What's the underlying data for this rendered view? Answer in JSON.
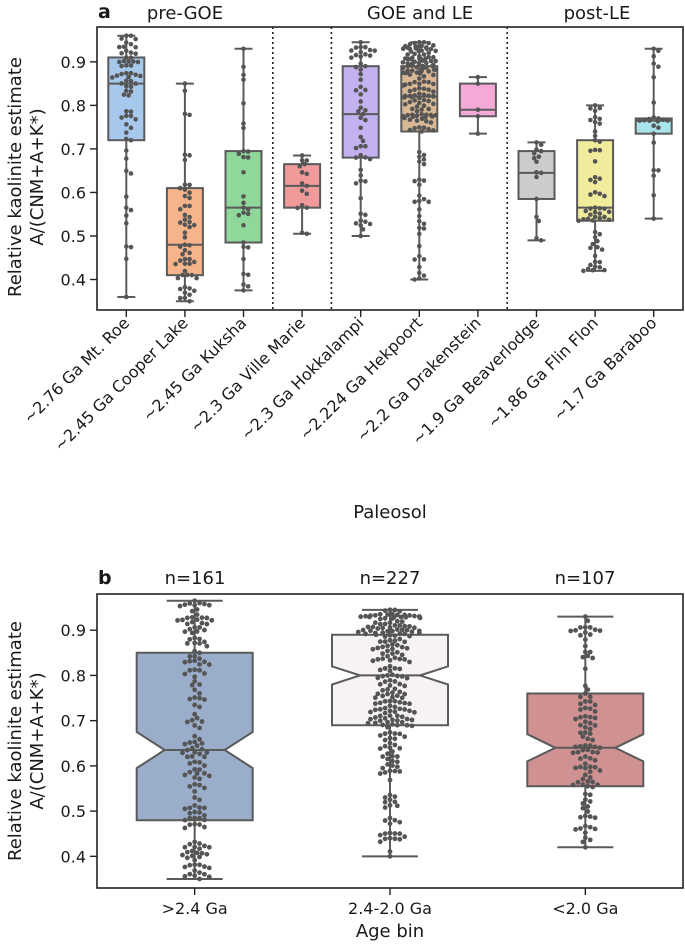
{
  "chart_data": [
    {
      "type": "box",
      "panel_label": "a",
      "ylabel_line1": "Relative kaolinite estimate",
      "ylabel_line2": "A/(CNM+A+K*)",
      "xlabel": "Paleosol",
      "ylim": [
        0.33,
        0.98
      ],
      "yticks": [
        0.4,
        0.5,
        0.6,
        0.7,
        0.8,
        0.9
      ],
      "group_labels": [
        "pre-GOE",
        "GOE and LE",
        "post-LE"
      ],
      "categories": [
        "~2.76 Ga Mt. Roe",
        "~2.45 Ga Cooper Lake",
        "~2.45 Ga Kuksha",
        "~2.3 Ga Ville Marie",
        "~2.3 Ga Hokkalampi",
        "~2.224 Ga Hekpoort",
        "~2.2 Ga Drakenstein",
        "~1.9 Ga Beaverlodge",
        "~1.86 Ga Flin Flon",
        "~1.7 Ga Baraboo"
      ],
      "boxes": [
        {
          "name": "~2.76 Ga Mt. Roe",
          "min": 0.36,
          "q1": 0.72,
          "median": 0.85,
          "q3": 0.91,
          "max": 0.96,
          "n": 65,
          "color": "#a6c8ec"
        },
        {
          "name": "~2.45 Ga Cooper Lake",
          "min": 0.35,
          "q1": 0.41,
          "median": 0.48,
          "q3": 0.61,
          "max": 0.85,
          "n": 55,
          "color": "#f5b489"
        },
        {
          "name": "~2.45 Ga Kuksha",
          "min": 0.375,
          "q1": 0.485,
          "median": 0.565,
          "q3": 0.695,
          "max": 0.93,
          "n": 30,
          "color": "#90d89a"
        },
        {
          "name": "~2.3 Ga Ville Marie",
          "min": 0.505,
          "q1": 0.565,
          "median": 0.615,
          "q3": 0.665,
          "max": 0.685,
          "n": 16,
          "color": "#f09a9a"
        },
        {
          "name": "~2.3 Ga Hokkalampi",
          "min": 0.5,
          "q1": 0.68,
          "median": 0.78,
          "q3": 0.89,
          "max": 0.945,
          "n": 55,
          "color": "#c4b1ef"
        },
        {
          "name": "~2.224 Ga Hekpoort",
          "min": 0.4,
          "q1": 0.74,
          "median": 0.82,
          "q3": 0.89,
          "max": 0.945,
          "n": 165,
          "color": "#d9b896"
        },
        {
          "name": "~2.2 Ga Drakenstein",
          "min": 0.735,
          "q1": 0.775,
          "median": 0.79,
          "q3": 0.85,
          "max": 0.865,
          "n": 5,
          "color": "#f4a9d8"
        },
        {
          "name": "~1.9 Ga Beaverlodge",
          "min": 0.49,
          "q1": 0.585,
          "median": 0.645,
          "q3": 0.695,
          "max": 0.715,
          "n": 16,
          "color": "#cccccc"
        },
        {
          "name": "~1.86 Ga Flin Flon",
          "min": 0.42,
          "q1": 0.535,
          "median": 0.565,
          "q3": 0.72,
          "max": 0.8,
          "n": 60,
          "color": "#f1ec9c"
        },
        {
          "name": "~1.7 Ga Baraboo",
          "min": 0.54,
          "q1": 0.735,
          "median": 0.765,
          "q3": 0.77,
          "max": 0.93,
          "n": 25,
          "color": "#a9e4ea"
        }
      ],
      "group_dividers_after_index": [
        2,
        3,
        6
      ]
    },
    {
      "type": "box",
      "notched": true,
      "panel_label": "b",
      "ylabel_line1": "Relative kaolinite estimate",
      "ylabel_line2": "A/(CNM+A+K*)",
      "xlabel": "Age bin",
      "ylim": [
        0.33,
        0.98
      ],
      "yticks": [
        0.4,
        0.5,
        0.6,
        0.7,
        0.8,
        0.9
      ],
      "categories": [
        ">2.4 Ga",
        "2.4-2.0 Ga",
        "<2.0 Ga"
      ],
      "counts": [
        "n=161",
        "n=227",
        "n=107"
      ],
      "boxes": [
        {
          "name": ">2.4 Ga",
          "min": 0.35,
          "q1": 0.48,
          "median": 0.635,
          "q3": 0.85,
          "max": 0.965,
          "notch_low": 0.595,
          "notch_high": 0.675,
          "n": 161,
          "color": "#9aadca"
        },
        {
          "name": "2.4-2.0 Ga",
          "min": 0.4,
          "q1": 0.69,
          "median": 0.8,
          "q3": 0.89,
          "max": 0.945,
          "notch_low": 0.78,
          "notch_high": 0.82,
          "n": 227,
          "color": "#f6f3f2"
        },
        {
          "name": "<2.0 Ga",
          "min": 0.42,
          "q1": 0.555,
          "median": 0.64,
          "q3": 0.76,
          "max": 0.93,
          "notch_low": 0.61,
          "notch_high": 0.67,
          "n": 107,
          "color": "#cf9191"
        }
      ]
    }
  ]
}
